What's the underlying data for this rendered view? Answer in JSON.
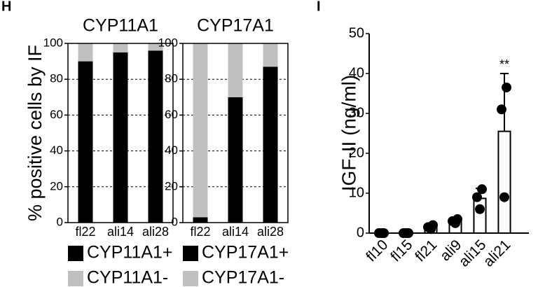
{
  "panel_labels": [
    "H",
    "I"
  ],
  "chart_data": [
    {
      "type": "bar",
      "stacked": true,
      "title": "CYP11A1",
      "ylabel": "% positive cells by IF",
      "categories": [
        "fl22",
        "ali14",
        "ali28"
      ],
      "series": [
        {
          "name": "CYP11A1+",
          "color": "#000000",
          "values": [
            90,
            95,
            96
          ]
        },
        {
          "name": "CYP11A1-",
          "color": "#c0c0c0",
          "values": [
            10,
            5,
            4
          ]
        }
      ],
      "ylim": [
        0,
        100
      ],
      "yticks": [
        0,
        20,
        40,
        60,
        80,
        100
      ],
      "grid": true
    },
    {
      "type": "bar",
      "stacked": true,
      "title": "CYP17A1",
      "categories": [
        "fl22",
        "ali14",
        "ali28"
      ],
      "series": [
        {
          "name": "CYP17A1+",
          "color": "#000000",
          "values": [
            3,
            70,
            87
          ]
        },
        {
          "name": "CYP17A1-",
          "color": "#c0c0c0",
          "values": [
            97,
            30,
            13
          ]
        }
      ],
      "ylim": [
        0,
        100
      ],
      "yticks": [
        0,
        20,
        40,
        60,
        80,
        100
      ],
      "grid": true
    },
    {
      "type": "bar",
      "stacked": false,
      "ylabel": "IGF-II (ng/ml)",
      "categories": [
        "fl10",
        "fl15",
        "fl21",
        "ali9",
        "ali15",
        "ali21"
      ],
      "values": [
        0,
        0,
        1.5,
        3,
        8.7,
        25.5
      ],
      "errors": [
        0,
        0,
        0.5,
        0.5,
        2.5,
        14.5
      ],
      "points": [
        [
          0,
          0,
          0
        ],
        [
          0,
          0,
          0
        ],
        [
          1,
          1.5,
          2
        ],
        [
          2.5,
          3,
          3.5
        ],
        [
          6,
          9,
          11
        ],
        [
          9,
          31,
          36.5
        ]
      ],
      "color": "#ffffff",
      "annotation": "**",
      "ylim": [
        0,
        50
      ],
      "yticks": [
        0,
        10,
        20,
        30,
        40,
        50
      ],
      "grid": false
    }
  ]
}
